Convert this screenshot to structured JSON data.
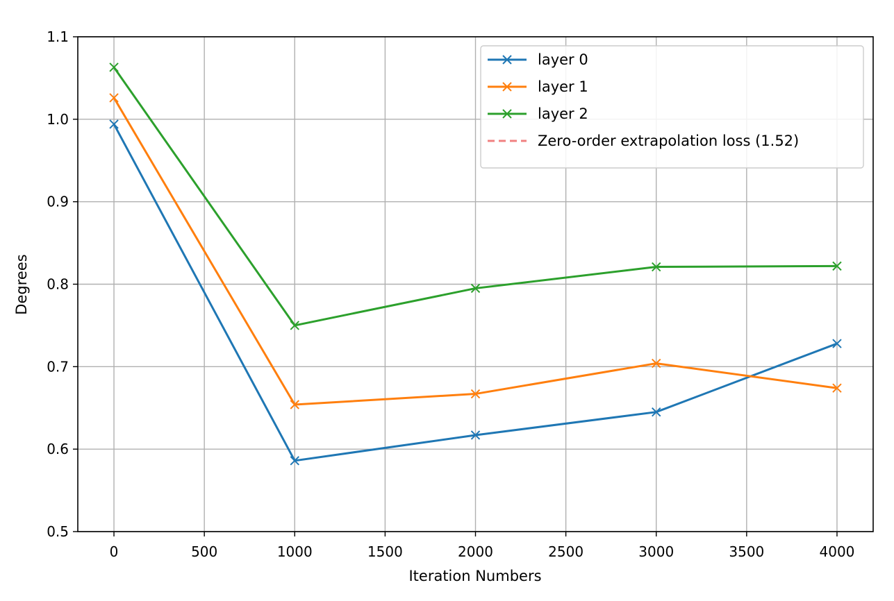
{
  "chart_data": {
    "type": "line",
    "title": "",
    "xlabel": "Iteration Numbers",
    "ylabel": "Degrees",
    "xlim": [
      -200,
      4200
    ],
    "ylim": [
      0.5,
      1.1
    ],
    "xticks": [
      0,
      500,
      1000,
      1500,
      2000,
      2500,
      3000,
      3500,
      4000
    ],
    "xtick_labels": [
      "0",
      "500",
      "1000",
      "1500",
      "2000",
      "2500",
      "3000",
      "3500",
      "4000"
    ],
    "yticks": [
      0.5,
      0.6,
      0.7,
      0.8,
      0.9,
      1.0,
      1.1
    ],
    "ytick_labels": [
      "0.5",
      "0.6",
      "0.7",
      "0.8",
      "0.9",
      "1.0",
      "1.1"
    ],
    "grid": true,
    "legend_position": "upper right",
    "x": [
      0,
      1000,
      2000,
      3000,
      4000
    ],
    "series": [
      {
        "name": "layer 0",
        "color": "#1f77b4",
        "marker": "x",
        "values": [
          0.994,
          0.586,
          0.617,
          0.645,
          0.728
        ]
      },
      {
        "name": "layer 1",
        "color": "#ff7f0e",
        "marker": "x",
        "values": [
          1.026,
          0.654,
          0.667,
          0.704,
          0.674
        ]
      },
      {
        "name": "layer 2",
        "color": "#2ca02c",
        "marker": "x",
        "values": [
          1.063,
          0.75,
          0.795,
          0.821,
          0.822
        ]
      }
    ],
    "extra_legend_entries": [
      {
        "name": "Zero-order extrapolation loss (1.52)",
        "color": "#f08080",
        "linestyle": "dashed"
      }
    ]
  }
}
